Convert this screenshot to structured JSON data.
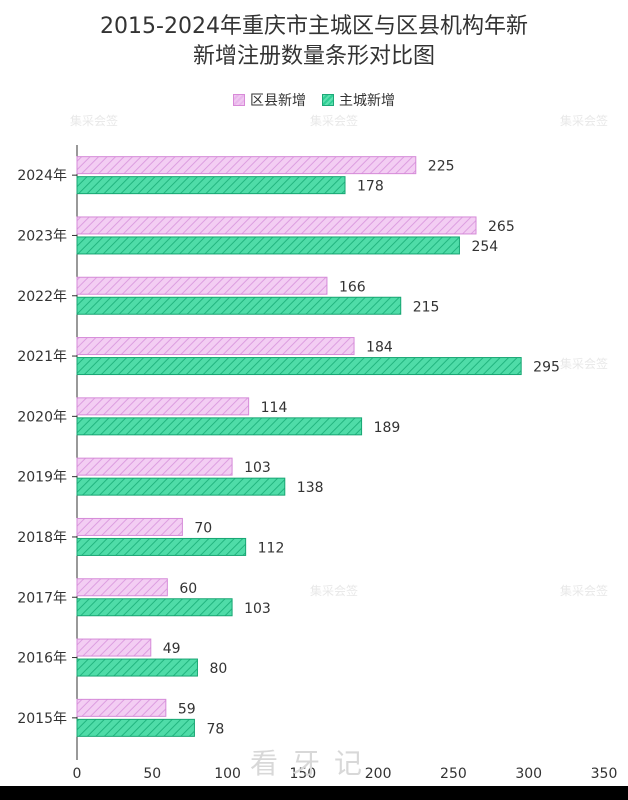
{
  "chart_data": {
    "type": "bar",
    "orientation": "horizontal",
    "title_line1": "2015-2024年重庆市主城区与区县机构年新",
    "title_line2": "新增注册数量条形对比图",
    "categories": [
      "2024年",
      "2023年",
      "2022年",
      "2021年",
      "2020年",
      "2019年",
      "2018年",
      "2017年",
      "2016年",
      "2015年"
    ],
    "series": [
      {
        "name": "区县新增",
        "values": [
          225,
          265,
          166,
          184,
          114,
          103,
          70,
          60,
          49,
          59
        ],
        "color": "#f0c2f0",
        "border": "#d58bd8"
      },
      {
        "name": "主城新增",
        "values": [
          178,
          254,
          215,
          295,
          189,
          138,
          112,
          103,
          80,
          78
        ],
        "color": "#3ed69e",
        "border": "#18a673"
      }
    ],
    "xlim": [
      0,
      350
    ],
    "xticks": [
      0,
      50,
      100,
      150,
      200,
      250,
      300,
      350
    ],
    "legend_position": "top-center",
    "grid": false
  },
  "watermark": {
    "logo_text": "看牙记",
    "brand_text": "集采会签"
  }
}
